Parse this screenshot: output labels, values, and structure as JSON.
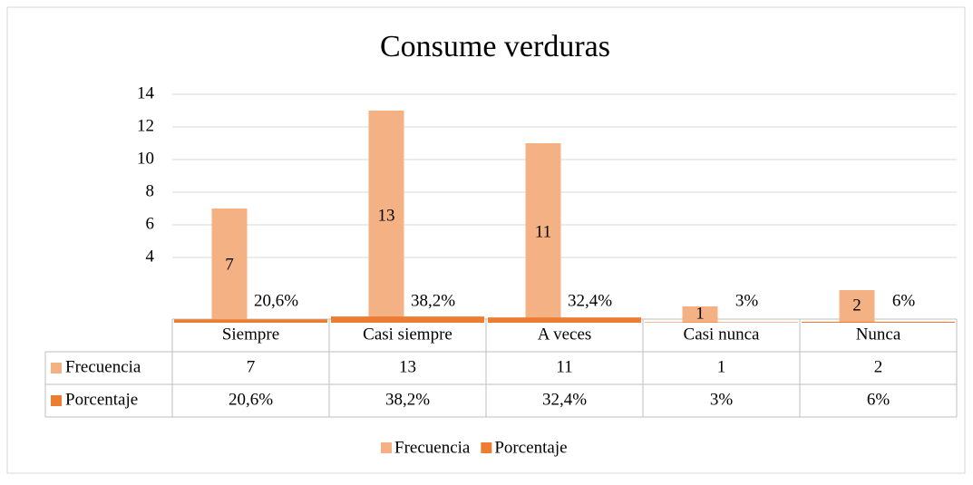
{
  "chart_data": {
    "type": "bar",
    "title": "Consume verduras",
    "categories": [
      "Siempre",
      "Casi siempre",
      "A veces",
      "Casi nunca",
      "Nunca"
    ],
    "series": [
      {
        "name": "Frecuencia",
        "color": "#f4b183",
        "values": [
          7,
          13,
          11,
          1,
          2
        ]
      },
      {
        "name": "Porcentaje",
        "color": "#ed7d31",
        "values": [
          0.206,
          0.382,
          0.324,
          0.03,
          0.06
        ],
        "value_labels": [
          "20,6%",
          "38,2%",
          "32,4%",
          "3%",
          "6%"
        ]
      }
    ],
    "ylim": [
      0,
      14
    ],
    "yticks": [
      4,
      6,
      8,
      10,
      12,
      14
    ],
    "grid": true,
    "legend": "bottom",
    "data_table": true
  }
}
